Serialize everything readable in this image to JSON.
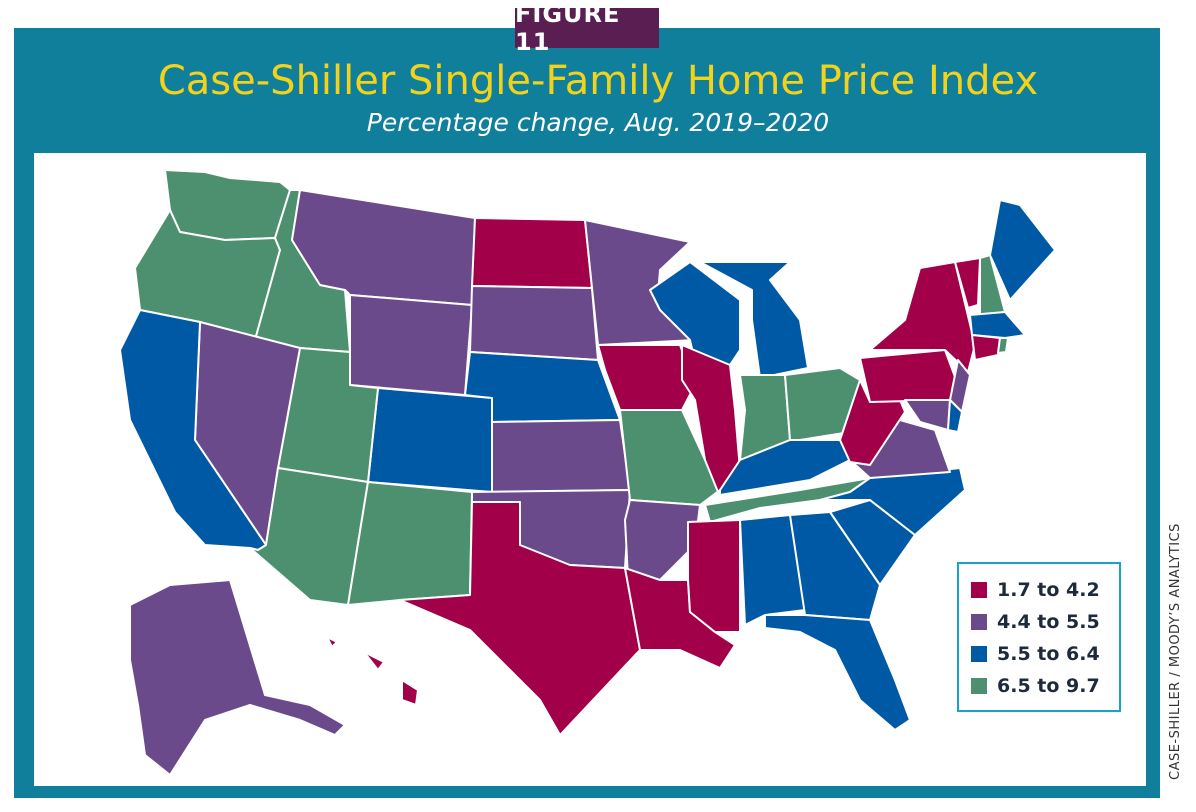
{
  "badge": "FIGURE 11",
  "title": "Case-Shiller Single-Family Home Price Index",
  "subtitle": "Percentage change, Aug. 2019–2020",
  "source": "CASE-SHILLER / MOODY’S ANALYTICS",
  "colors": {
    "frame": "#0f7f9c",
    "badge": "#5b1e52",
    "title": "#f2d21a",
    "bin_1": "#a3004a",
    "bin_2": "#6b4a8b",
    "bin_3": "#0059a4",
    "bin_4": "#4c9070"
  },
  "legend": [
    {
      "label": "1.7 to 4.2",
      "bin": "bin_1"
    },
    {
      "label": "4.4 to 5.5",
      "bin": "bin_2"
    },
    {
      "label": "5.5 to 6.4",
      "bin": "bin_3"
    },
    {
      "label": "6.5 to 9.7",
      "bin": "bin_4"
    }
  ],
  "states": {
    "WA": "bin_4",
    "OR": "bin_4",
    "ID": "bin_4",
    "UT": "bin_4",
    "AZ": "bin_4",
    "NM": "bin_4",
    "MO": "bin_4",
    "IN": "bin_4",
    "OH": "bin_4",
    "TN": "bin_4",
    "NH": "bin_4",
    "RI": "bin_4",
    "MT": "bin_2",
    "WY": "bin_2",
    "SD": "bin_2",
    "MN": "bin_2",
    "NV": "bin_2",
    "KS": "bin_2",
    "OK": "bin_2",
    "AR": "bin_2",
    "VA": "bin_2",
    "MD": "bin_2",
    "NJ": "bin_2",
    "AK": "bin_2",
    "ND": "bin_1",
    "IA": "bin_1",
    "IL": "bin_1",
    "TX": "bin_1",
    "LA": "bin_1",
    "MS": "bin_1",
    "WV": "bin_1",
    "PA": "bin_1",
    "NY": "bin_1",
    "VT": "bin_1",
    "CT": "bin_1",
    "HI": "bin_1",
    "CA": "bin_3",
    "CO": "bin_3",
    "NE": "bin_3",
    "WI": "bin_3",
    "MI": "bin_3",
    "KY": "bin_3",
    "AL": "bin_3",
    "GA": "bin_3",
    "FL": "bin_3",
    "SC": "bin_3",
    "NC": "bin_3",
    "ME": "bin_3",
    "MA": "bin_3",
    "DE": "bin_3"
  }
}
